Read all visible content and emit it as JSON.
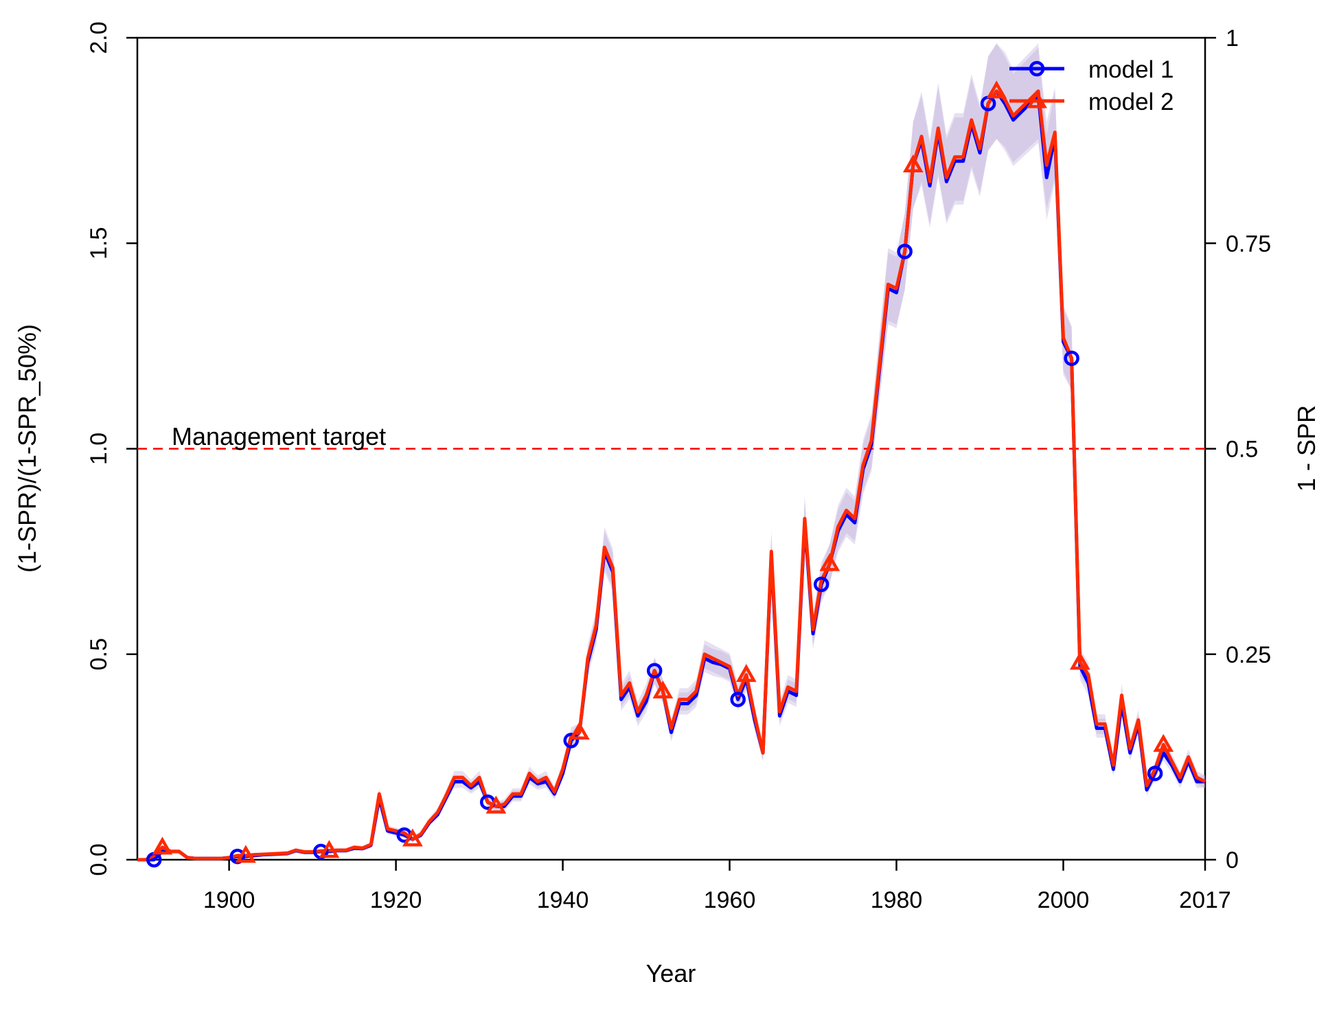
{
  "chart_data": {
    "type": "line",
    "title": "",
    "xlabel": "Year",
    "ylabel": "(1-SPR)/(1-SPR_50%)",
    "ylabel_right": "1 - SPR",
    "xlim": [
      1889,
      2017
    ],
    "ylim": [
      0,
      2
    ],
    "x_ticks": [
      1900,
      1920,
      1940,
      1960,
      1980,
      2000,
      2017
    ],
    "x_tick_labels": [
      "1900",
      "1920",
      "1940",
      "1960",
      "1980",
      "2000",
      "2017"
    ],
    "y_ticks": [
      0,
      0.5,
      1,
      1.5,
      2
    ],
    "y_tick_labels": [
      "0.0",
      "0.5",
      "1.0",
      "1.5",
      "2.0"
    ],
    "y_right_ticks": [
      0,
      0.5,
      1,
      1.5,
      2
    ],
    "y_right_tick_labels": [
      "0",
      "0.25",
      "0.5",
      "0.75",
      "1"
    ],
    "grid": false,
    "legend_position": "top-right",
    "reference_line": {
      "y": 1.0,
      "label": "Management target",
      "color": "#ff0000"
    },
    "series": [
      {
        "name": "model 1",
        "color": "#0000ff",
        "marker": "circle",
        "marker_years": [
          1891,
          1901,
          1911,
          1921,
          1931,
          1941,
          1951,
          1961,
          1971,
          1981,
          1991,
          2001,
          2011
        ],
        "x": [
          1889,
          1890,
          1891,
          1892,
          1893,
          1894,
          1895,
          1896,
          1897,
          1898,
          1899,
          1900,
          1901,
          1902,
          1903,
          1904,
          1905,
          1906,
          1907,
          1908,
          1909,
          1910,
          1911,
          1912,
          1913,
          1914,
          1915,
          1916,
          1917,
          1918,
          1919,
          1920,
          1921,
          1922,
          1923,
          1924,
          1925,
          1926,
          1927,
          1928,
          1929,
          1930,
          1931,
          1932,
          1933,
          1934,
          1935,
          1936,
          1937,
          1938,
          1939,
          1940,
          1941,
          1942,
          1943,
          1944,
          1945,
          1946,
          1947,
          1948,
          1949,
          1950,
          1951,
          1952,
          1953,
          1954,
          1955,
          1956,
          1957,
          1958,
          1959,
          1960,
          1961,
          1962,
          1963,
          1964,
          1965,
          1966,
          1967,
          1968,
          1969,
          1970,
          1971,
          1972,
          1973,
          1974,
          1975,
          1976,
          1977,
          1978,
          1979,
          1980,
          1981,
          1982,
          1983,
          1984,
          1985,
          1986,
          1987,
          1988,
          1989,
          1990,
          1991,
          1992,
          1993,
          1994,
          1995,
          1996,
          1997,
          1998,
          1999,
          2000,
          2001,
          2002,
          2003,
          2004,
          2005,
          2006,
          2007,
          2008,
          2009,
          2010,
          2011,
          2012,
          2013,
          2014,
          2015,
          2016,
          2017
        ],
        "y": [
          0,
          0,
          0,
          0.02,
          0.02,
          0.02,
          0.005,
          0.003,
          0.003,
          0.003,
          0.003,
          0.005,
          0.008,
          0.008,
          0.01,
          0.012,
          0.013,
          0.014,
          0.015,
          0.022,
          0.018,
          0.018,
          0.02,
          0.02,
          0.022,
          0.022,
          0.028,
          0.027,
          0.035,
          0.15,
          0.07,
          0.065,
          0.06,
          0.05,
          0.06,
          0.09,
          0.11,
          0.15,
          0.19,
          0.19,
          0.175,
          0.19,
          0.14,
          0.13,
          0.13,
          0.155,
          0.155,
          0.2,
          0.185,
          0.19,
          0.16,
          0.21,
          0.29,
          0.31,
          0.48,
          0.56,
          0.75,
          0.7,
          0.39,
          0.42,
          0.35,
          0.385,
          0.46,
          0.41,
          0.31,
          0.38,
          0.38,
          0.4,
          0.49,
          0.48,
          0.475,
          0.465,
          0.39,
          0.44,
          0.34,
          0.26,
          0.74,
          0.35,
          0.41,
          0.4,
          0.82,
          0.55,
          0.67,
          0.72,
          0.8,
          0.84,
          0.82,
          0.95,
          1.01,
          1.2,
          1.39,
          1.38,
          1.48,
          1.69,
          1.75,
          1.64,
          1.77,
          1.65,
          1.7,
          1.7,
          1.79,
          1.72,
          1.84,
          1.87,
          1.84,
          1.8,
          1.82,
          1.84,
          1.86,
          1.66,
          1.76,
          1.26,
          1.22,
          0.47,
          0.43,
          0.32,
          0.32,
          0.22,
          0.38,
          0.26,
          0.33,
          0.17,
          0.21,
          0.26,
          0.23,
          0.19,
          0.24,
          0.19,
          0.19
        ]
      },
      {
        "name": "model 2",
        "color": "#ff2a00",
        "marker": "triangle",
        "marker_years": [
          1892,
          1902,
          1912,
          1922,
          1932,
          1942,
          1952,
          1962,
          1972,
          1982,
          1992,
          2002,
          2012
        ],
        "x": [
          1889,
          1890,
          1891,
          1892,
          1893,
          1894,
          1895,
          1896,
          1897,
          1898,
          1899,
          1900,
          1901,
          1902,
          1903,
          1904,
          1905,
          1906,
          1907,
          1908,
          1909,
          1910,
          1911,
          1912,
          1913,
          1914,
          1915,
          1916,
          1917,
          1918,
          1919,
          1920,
          1921,
          1922,
          1923,
          1924,
          1925,
          1926,
          1927,
          1928,
          1929,
          1930,
          1931,
          1932,
          1933,
          1934,
          1935,
          1936,
          1937,
          1938,
          1939,
          1940,
          1941,
          1942,
          1943,
          1944,
          1945,
          1946,
          1947,
          1948,
          1949,
          1950,
          1951,
          1952,
          1953,
          1954,
          1955,
          1956,
          1957,
          1958,
          1959,
          1960,
          1961,
          1962,
          1963,
          1964,
          1965,
          1966,
          1967,
          1968,
          1969,
          1970,
          1971,
          1972,
          1973,
          1974,
          1975,
          1976,
          1977,
          1978,
          1979,
          1980,
          1981,
          1982,
          1983,
          1984,
          1985,
          1986,
          1987,
          1988,
          1989,
          1990,
          1991,
          1992,
          1993,
          1994,
          1995,
          1996,
          1997,
          1998,
          1999,
          2000,
          2001,
          2002,
          2003,
          2004,
          2005,
          2006,
          2007,
          2008,
          2009,
          2010,
          2011,
          2012,
          2013,
          2014,
          2015,
          2016,
          2017
        ],
        "y": [
          0,
          0,
          0.01,
          0.03,
          0.02,
          0.02,
          0.005,
          0.003,
          0.003,
          0.003,
          0.003,
          0.005,
          0.01,
          0.01,
          0.012,
          0.013,
          0.014,
          0.015,
          0.016,
          0.023,
          0.019,
          0.019,
          0.021,
          0.022,
          0.023,
          0.023,
          0.03,
          0.028,
          0.037,
          0.16,
          0.075,
          0.07,
          0.065,
          0.05,
          0.062,
          0.093,
          0.115,
          0.155,
          0.2,
          0.2,
          0.18,
          0.2,
          0.14,
          0.13,
          0.135,
          0.16,
          0.16,
          0.21,
          0.19,
          0.2,
          0.165,
          0.22,
          0.3,
          0.31,
          0.49,
          0.57,
          0.76,
          0.71,
          0.4,
          0.43,
          0.36,
          0.4,
          0.46,
          0.41,
          0.32,
          0.39,
          0.39,
          0.41,
          0.5,
          0.49,
          0.48,
          0.47,
          0.4,
          0.45,
          0.35,
          0.26,
          0.75,
          0.36,
          0.42,
          0.41,
          0.83,
          0.56,
          0.68,
          0.72,
          0.81,
          0.85,
          0.83,
          0.96,
          1.02,
          1.21,
          1.4,
          1.39,
          1.48,
          1.69,
          1.76,
          1.65,
          1.78,
          1.66,
          1.71,
          1.71,
          1.8,
          1.73,
          1.84,
          1.87,
          1.85,
          1.81,
          1.83,
          1.85,
          1.87,
          1.69,
          1.77,
          1.27,
          1.22,
          0.48,
          0.45,
          0.33,
          0.33,
          0.23,
          0.4,
          0.27,
          0.34,
          0.18,
          0.22,
          0.28,
          0.24,
          0.2,
          0.25,
          0.2,
          0.19
        ]
      }
    ]
  }
}
